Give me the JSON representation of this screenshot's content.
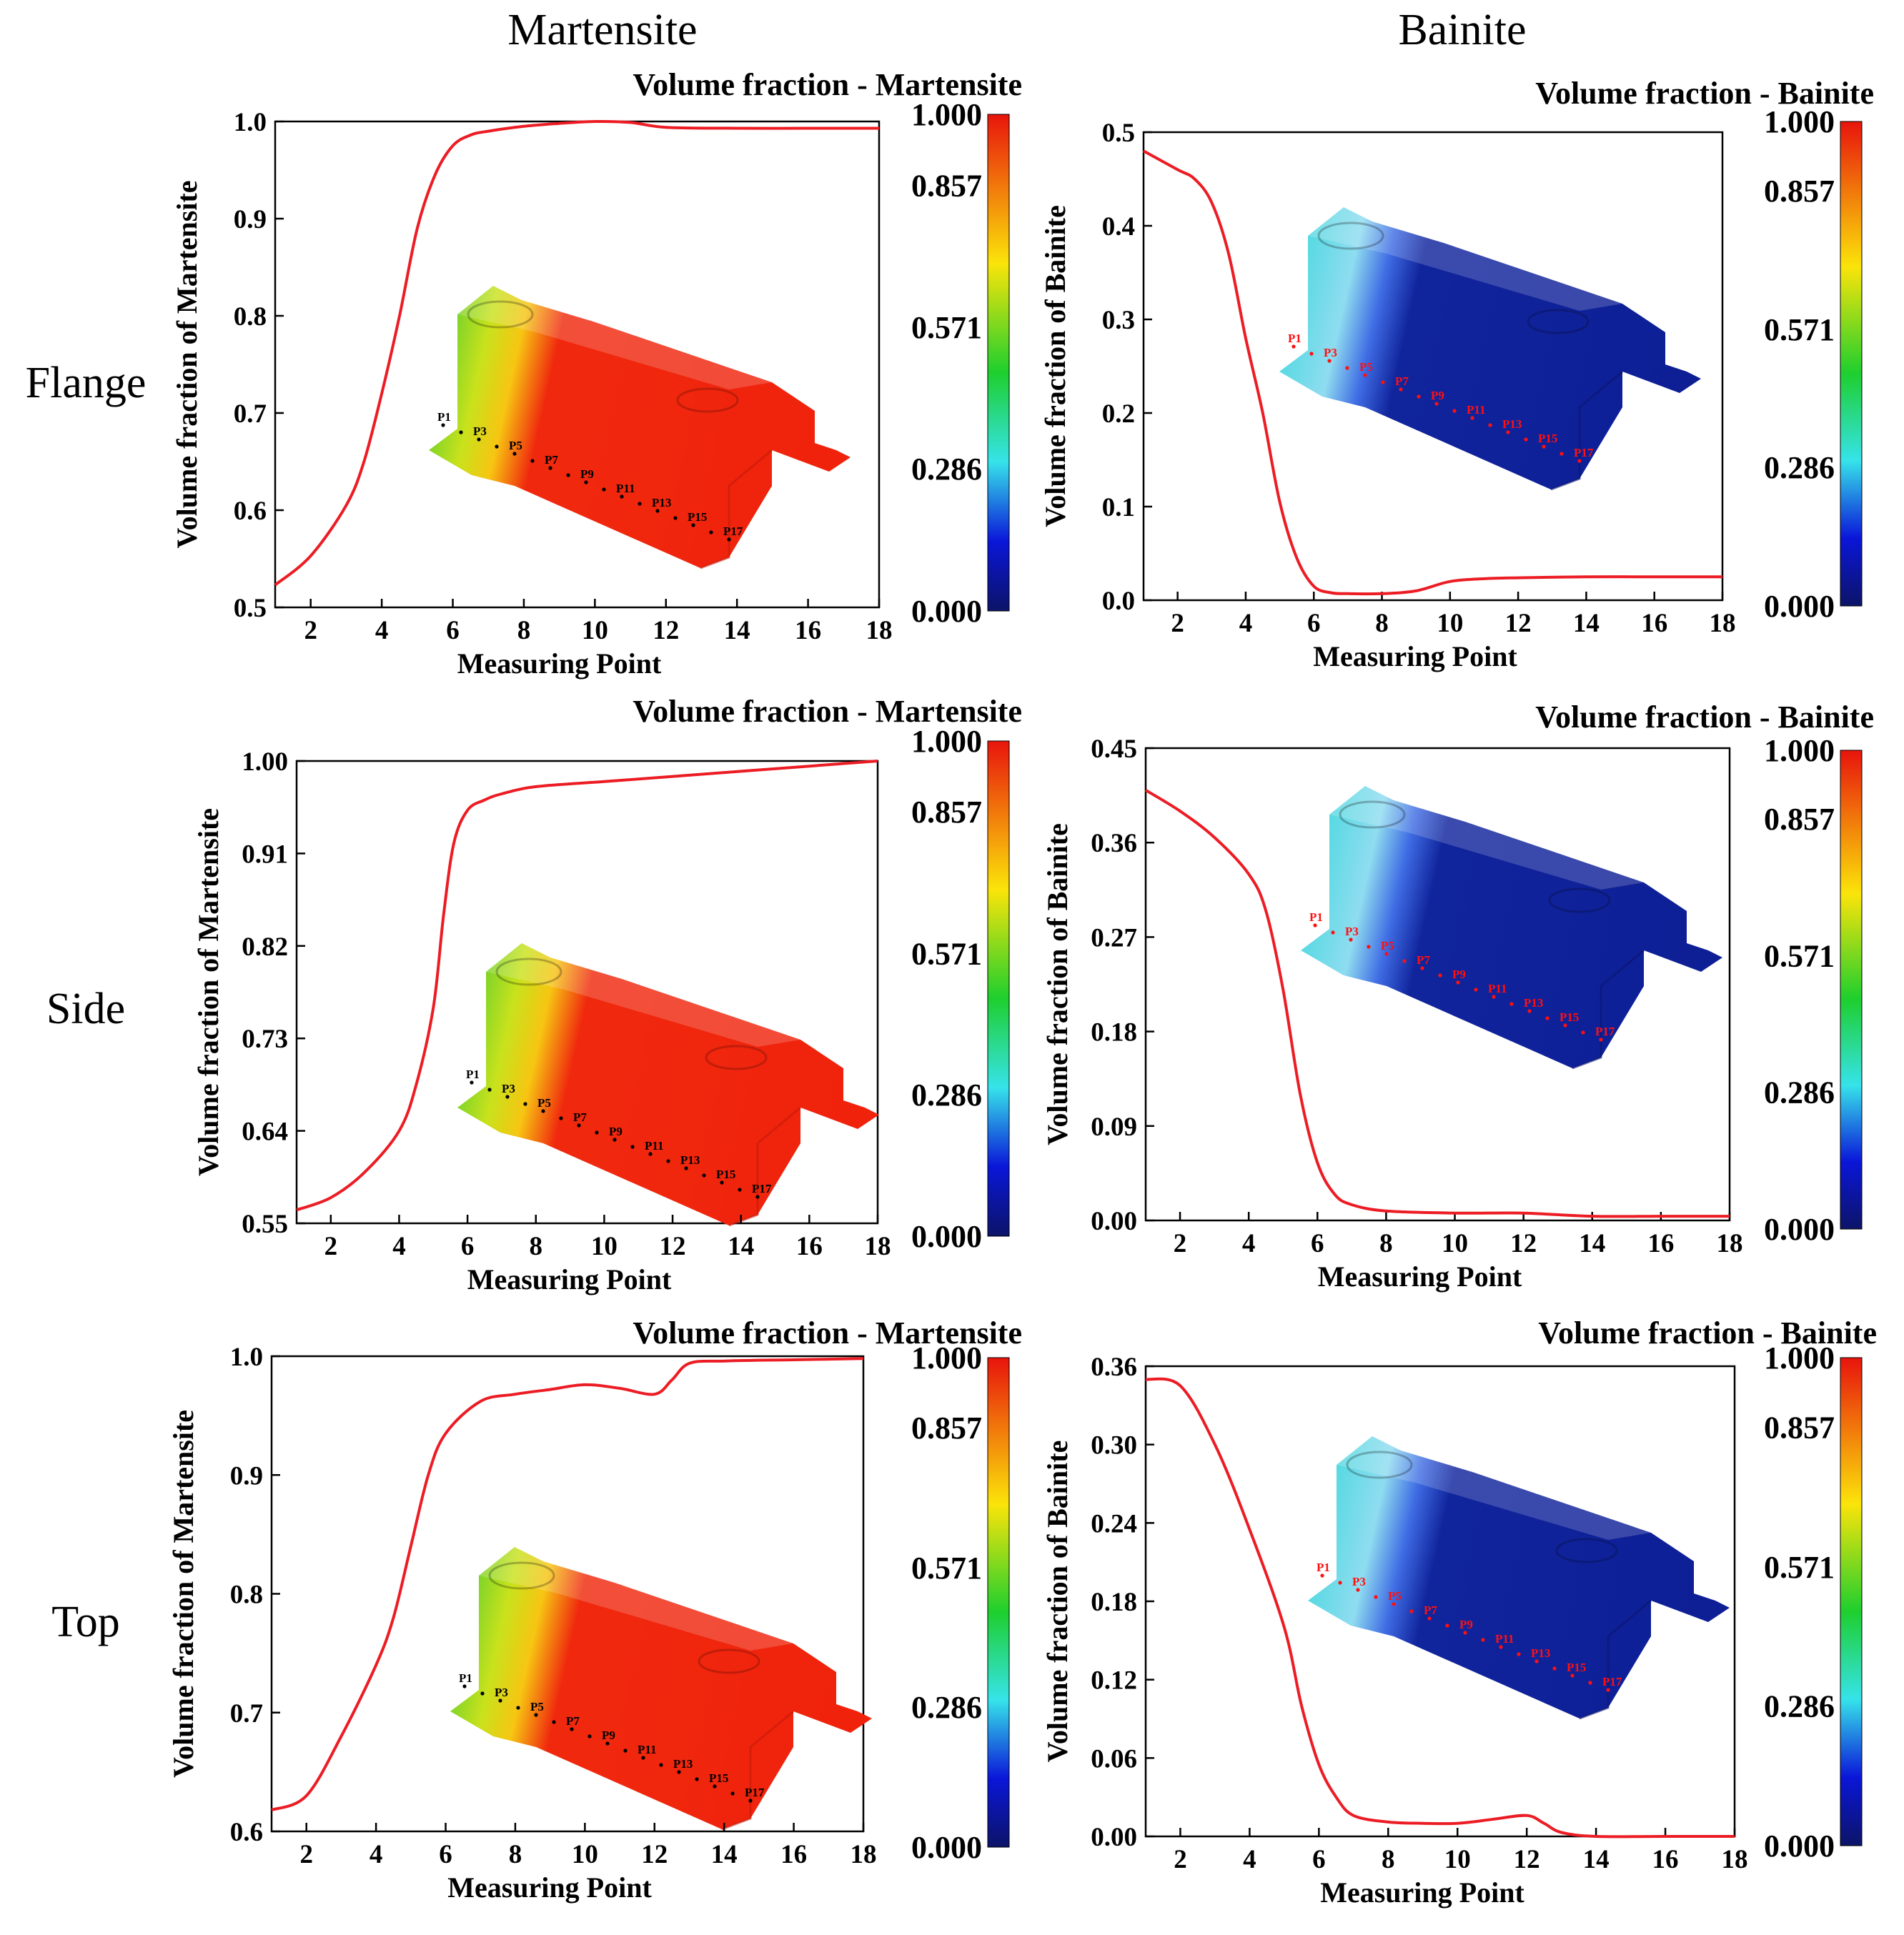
{
  "column_titles": [
    "Martensite",
    "Bainite"
  ],
  "row_titles": [
    "Flange",
    "Side",
    "Top"
  ],
  "colorbar": {
    "ticks": [
      "1.000",
      "0.857",
      "0.571",
      "0.286",
      "0.000"
    ],
    "tick_values": [
      1.0,
      0.857,
      0.571,
      0.286,
      0.0
    ],
    "colors": [
      "#e8140c",
      "#fbe40a",
      "#1ecf2e",
      "#36e3ea",
      "#0a16d8",
      "#0c1468"
    ]
  },
  "measuring_points": [
    "P1",
    "P3",
    "P5",
    "P7",
    "P9",
    "P11",
    "P13",
    "P15",
    "P17"
  ],
  "chart_data": [
    {
      "type": "line",
      "row": "Flange",
      "phase": "Martensite",
      "colorbar_title": "Volume fraction - Martensite",
      "xlabel": "Measuring Point",
      "ylabel": "Volume fraction of Martensite",
      "xlim": [
        1,
        18
      ],
      "ylim": [
        0.5,
        1.0
      ],
      "xticks": [
        2,
        4,
        6,
        8,
        10,
        12,
        14,
        16,
        18
      ],
      "xtick_labels": [
        "2",
        "4",
        "6",
        "8",
        "10",
        "12",
        "14",
        "16",
        "18"
      ],
      "yticks": [
        0.5,
        0.6,
        0.7,
        0.8,
        0.9,
        1.0
      ],
      "ytick_labels": [
        "0.5",
        "0.6",
        "0.7",
        "0.8",
        "0.9",
        "1.0"
      ],
      "line_color": "#ec1c24",
      "x": [
        1,
        2,
        3,
        3.5,
        4,
        4.5,
        5,
        5.5,
        6,
        6.5,
        7,
        8,
        9,
        10,
        11,
        12,
        14,
        16,
        18
      ],
      "y": [
        0.523,
        0.553,
        0.605,
        0.65,
        0.72,
        0.8,
        0.89,
        0.945,
        0.975,
        0.986,
        0.99,
        0.995,
        0.998,
        1.0,
        0.999,
        0.994,
        0.993,
        0.993,
        0.993
      ]
    },
    {
      "type": "line",
      "row": "Flange",
      "phase": "Bainite",
      "colorbar_title": "Volume fraction - Bainite",
      "xlabel": "Measuring Point",
      "ylabel": "Volume fraction of Bainite",
      "xlim": [
        1,
        18
      ],
      "ylim": [
        0.0,
        0.5
      ],
      "xticks": [
        2,
        4,
        6,
        8,
        10,
        12,
        14,
        16,
        18
      ],
      "xtick_labels": [
        "2",
        "4",
        "6",
        "8",
        "10",
        "12",
        "14",
        "16",
        "18"
      ],
      "yticks": [
        0.0,
        0.1,
        0.2,
        0.3,
        0.4,
        0.5
      ],
      "ytick_labels": [
        "0.0",
        "0.1",
        "0.2",
        "0.3",
        "0.4",
        "0.5"
      ],
      "line_color": "#ec1c24",
      "x": [
        1,
        2,
        2.5,
        3,
        3.5,
        4,
        4.5,
        5,
        5.5,
        6,
        6.5,
        7,
        8,
        9,
        10,
        11,
        12,
        14,
        16,
        18
      ],
      "y": [
        0.48,
        0.46,
        0.45,
        0.425,
        0.37,
        0.28,
        0.2,
        0.105,
        0.045,
        0.015,
        0.008,
        0.007,
        0.007,
        0.01,
        0.02,
        0.023,
        0.024,
        0.025,
        0.025,
        0.025
      ]
    },
    {
      "type": "line",
      "row": "Side",
      "phase": "Martensite",
      "colorbar_title": "Volume fraction - Martensite",
      "xlabel": "Measuring Point",
      "ylabel": "Volume fraction of Martensite",
      "xlim": [
        1,
        18
      ],
      "ylim": [
        0.55,
        1.0
      ],
      "xticks": [
        2,
        4,
        6,
        8,
        10,
        12,
        14,
        16,
        18
      ],
      "xtick_labels": [
        "2",
        "4",
        "6",
        "8",
        "10",
        "12",
        "14",
        "16",
        "18"
      ],
      "yticks": [
        0.55,
        0.64,
        0.73,
        0.82,
        0.91,
        1.0
      ],
      "ytick_labels": [
        "0.55",
        "0.64",
        "0.73",
        "0.82",
        "0.91",
        "1.00"
      ],
      "line_color": "#ec1c24",
      "x": [
        1,
        2,
        3,
        4,
        4.5,
        5,
        5.3,
        5.6,
        6,
        6.5,
        7,
        8,
        10,
        12,
        14,
        16,
        18
      ],
      "y": [
        0.563,
        0.575,
        0.6,
        0.64,
        0.685,
        0.76,
        0.85,
        0.92,
        0.952,
        0.962,
        0.968,
        0.975,
        0.98,
        0.985,
        0.99,
        0.995,
        1.0
      ]
    },
    {
      "type": "line",
      "row": "Side",
      "phase": "Bainite",
      "colorbar_title": "Volume fraction - Bainite",
      "xlabel": "Measuring Point",
      "ylabel": "Volume fraction of Bainite",
      "xlim": [
        1,
        18
      ],
      "ylim": [
        0.0,
        0.45
      ],
      "xticks": [
        2,
        4,
        6,
        8,
        10,
        12,
        14,
        16,
        18
      ],
      "xtick_labels": [
        "2",
        "4",
        "6",
        "8",
        "10",
        "12",
        "14",
        "16",
        "18"
      ],
      "yticks": [
        0.0,
        0.09,
        0.18,
        0.27,
        0.36,
        0.45
      ],
      "ytick_labels": [
        "0.00",
        "0.09",
        "0.18",
        "0.27",
        "0.36",
        "0.45"
      ],
      "line_color": "#ec1c24",
      "x": [
        1,
        2,
        3,
        4,
        4.5,
        5,
        5.5,
        6,
        6.5,
        7,
        8,
        10,
        12,
        14,
        16,
        18
      ],
      "y": [
        0.41,
        0.39,
        0.365,
        0.33,
        0.295,
        0.22,
        0.12,
        0.055,
        0.025,
        0.015,
        0.009,
        0.007,
        0.007,
        0.004,
        0.004,
        0.004
      ]
    },
    {
      "type": "line",
      "row": "Top",
      "phase": "Martensite",
      "colorbar_title": "Volume fraction - Martensite",
      "xlabel": "Measuring Point",
      "ylabel": "Volume fraction of Martensite",
      "xlim": [
        1,
        18
      ],
      "ylim": [
        0.6,
        1.0
      ],
      "xticks": [
        2,
        4,
        6,
        8,
        10,
        12,
        14,
        16,
        18
      ],
      "xtick_labels": [
        "2",
        "4",
        "6",
        "8",
        "10",
        "12",
        "14",
        "16",
        "18"
      ],
      "yticks": [
        0.6,
        0.7,
        0.8,
        0.9,
        1.0
      ],
      "ytick_labels": [
        "0.6",
        "0.7",
        "0.8",
        "0.9",
        "1.0"
      ],
      "line_color": "#ec1c24",
      "x": [
        1,
        2,
        3,
        4,
        4.5,
        5,
        5.5,
        6,
        7,
        8,
        9,
        10,
        11,
        12,
        12.5,
        13,
        14,
        16,
        18
      ],
      "y": [
        0.618,
        0.63,
        0.68,
        0.74,
        0.78,
        0.84,
        0.9,
        0.935,
        0.962,
        0.968,
        0.972,
        0.976,
        0.973,
        0.968,
        0.98,
        0.994,
        0.996,
        0.997,
        0.998
      ]
    },
    {
      "type": "line",
      "row": "Top",
      "phase": "Bainite",
      "colorbar_title": "Volume fraction - Bainite",
      "xlabel": "Measuring Point",
      "ylabel": "Volume fraction of Bainite",
      "xlim": [
        1,
        18
      ],
      "ylim": [
        0.0,
        0.36
      ],
      "xticks": [
        2,
        4,
        6,
        8,
        10,
        12,
        14,
        16,
        18
      ],
      "xtick_labels": [
        "2",
        "4",
        "6",
        "8",
        "10",
        "12",
        "14",
        "16",
        "18"
      ],
      "yticks": [
        0.0,
        0.06,
        0.12,
        0.18,
        0.24,
        0.3,
        0.36
      ],
      "ytick_labels": [
        "0.00",
        "0.06",
        "0.12",
        "0.18",
        "0.24",
        "0.30",
        "0.36"
      ],
      "line_color": "#ec1c24",
      "x": [
        1,
        2,
        3,
        4,
        5,
        5.5,
        6,
        6.5,
        7,
        8,
        9,
        10,
        11,
        12,
        12.5,
        13,
        14,
        16,
        18
      ],
      "y": [
        0.35,
        0.345,
        0.3,
        0.235,
        0.16,
        0.1,
        0.055,
        0.03,
        0.016,
        0.011,
        0.01,
        0.01,
        0.013,
        0.016,
        0.01,
        0.003,
        0.0,
        0.0,
        0.0
      ]
    }
  ]
}
